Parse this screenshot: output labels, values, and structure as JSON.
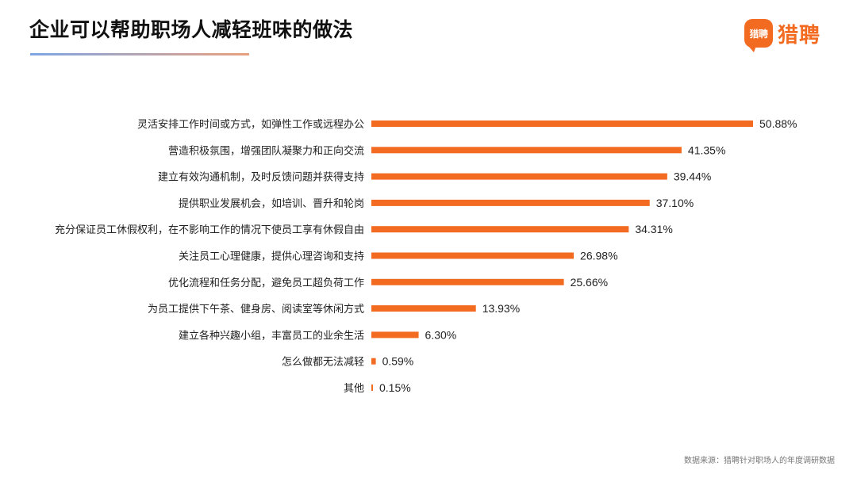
{
  "title": "企业可以帮助职场人减轻班味的做法",
  "logo": {
    "icon_text": "猎聘",
    "text": "猎聘",
    "icon": "speech-bubble-logo-icon",
    "color": "#f26b21"
  },
  "source": "数据来源：猎聘针对职场人的年度调研数据",
  "colors": {
    "bar": "#f26b21",
    "title_underline": [
      "#7ea6e6",
      "#e9a17f"
    ]
  },
  "chart_data": {
    "type": "bar",
    "orientation": "horizontal",
    "title": "企业可以帮助职场人减轻班味的做法",
    "xlabel": "",
    "ylabel": "",
    "grid": false,
    "legend": "none",
    "xlim": [
      0,
      50.88
    ],
    "categories": [
      "灵活安排工作时间或方式，如弹性工作或远程办公",
      "营造积极氛围，增强团队凝聚力和正向交流",
      "建立有效沟通机制，及时反馈问题并获得支持",
      "提供职业发展机会，如培训、晋升和轮岗",
      "充分保证员工休假权利，在不影响工作的情况下使员工享有休假自由",
      "关注员工心理健康，提供心理咨询和支持",
      "优化流程和任务分配，避免员工超负荷工作",
      "为员工提供下午茶、健身房、阅读室等休闲方式",
      "建立各种兴趣小组，丰富员工的业余生活",
      "怎么做都无法减轻",
      "其他"
    ],
    "values": [
      50.88,
      41.35,
      39.44,
      37.1,
      34.31,
      26.98,
      25.66,
      13.93,
      6.3,
      0.59,
      0.15
    ],
    "value_labels": [
      "50.88%",
      "41.35%",
      "39.44%",
      "37.10%",
      "34.31%",
      "26.98%",
      "25.66%",
      "13.93%",
      "6.30%",
      "0.59%",
      "0.15%"
    ]
  }
}
